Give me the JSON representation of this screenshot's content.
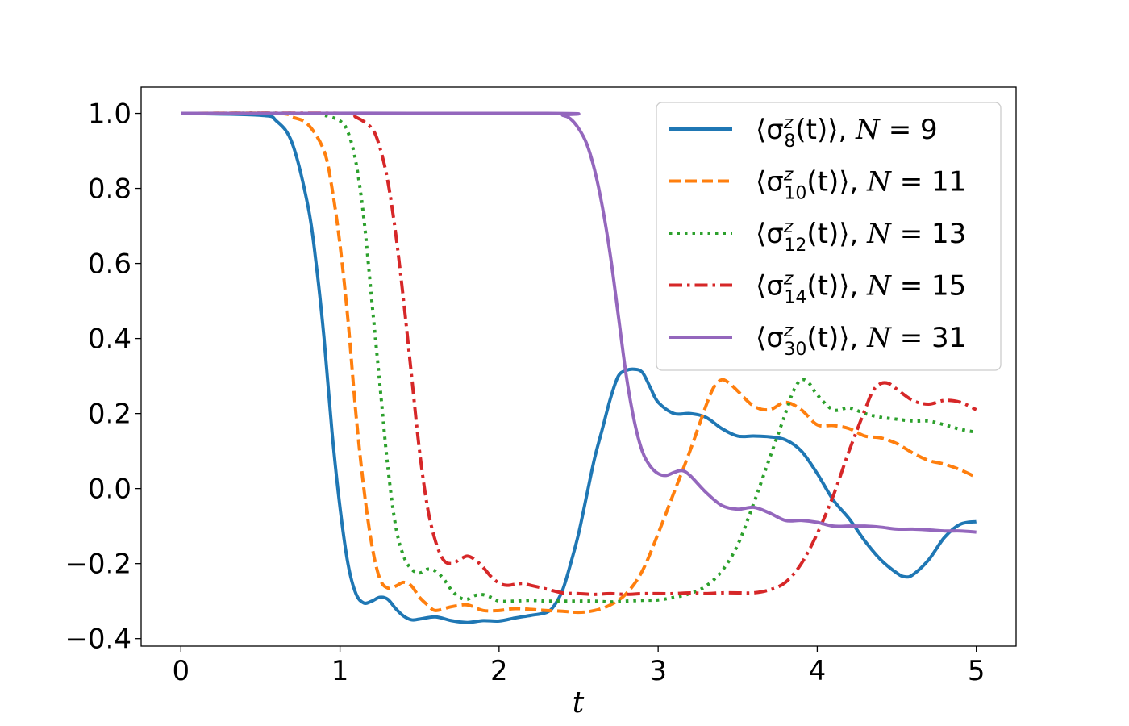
{
  "chart_data": {
    "type": "line",
    "xlabel": "t",
    "ylabel": "",
    "xlim": [
      -0.25,
      5.25
    ],
    "ylim": [
      -0.42,
      1.07
    ],
    "xticks": [
      0,
      1,
      2,
      3,
      4,
      5
    ],
    "xtick_labels": [
      "0",
      "1",
      "2",
      "3",
      "4",
      "5"
    ],
    "yticks": [
      -0.4,
      -0.2,
      0.0,
      0.2,
      0.4,
      0.6,
      0.8,
      1.0
    ],
    "ytick_labels": [
      "−0.4",
      "−0.2",
      "0.0",
      "0.2",
      "0.4",
      "0.6",
      "0.8",
      "1.0"
    ],
    "grid": false,
    "legend_position": "top-right",
    "series": [
      {
        "name": "⟨σ_8^z(t)⟩, N = 9",
        "label": {
          "open": "⟨σ",
          "sup": "z",
          "sub": "8",
          "close": "(t)⟩, ",
          "n": "N",
          "eq": " = 9"
        },
        "color": "#1f77b4",
        "dash": "solid",
        "points": [
          [
            0,
            1.0
          ],
          [
            0.5,
            0.995
          ],
          [
            0.6,
            0.98
          ],
          [
            0.7,
            0.92
          ],
          [
            0.8,
            0.75
          ],
          [
            0.85,
            0.6
          ],
          [
            0.9,
            0.4
          ],
          [
            0.95,
            0.15
          ],
          [
            1.0,
            -0.05
          ],
          [
            1.05,
            -0.2
          ],
          [
            1.1,
            -0.28
          ],
          [
            1.15,
            -0.305
          ],
          [
            1.2,
            -0.3
          ],
          [
            1.25,
            -0.29
          ],
          [
            1.3,
            -0.295
          ],
          [
            1.35,
            -0.32
          ],
          [
            1.4,
            -0.34
          ],
          [
            1.45,
            -0.35
          ],
          [
            1.5,
            -0.348
          ],
          [
            1.6,
            -0.342
          ],
          [
            1.7,
            -0.352
          ],
          [
            1.8,
            -0.357
          ],
          [
            1.9,
            -0.352
          ],
          [
            2.0,
            -0.353
          ],
          [
            2.1,
            -0.345
          ],
          [
            2.2,
            -0.338
          ],
          [
            2.3,
            -0.33
          ],
          [
            2.35,
            -0.31
          ],
          [
            2.4,
            -0.27
          ],
          [
            2.45,
            -0.2
          ],
          [
            2.5,
            -0.12
          ],
          [
            2.55,
            -0.02
          ],
          [
            2.6,
            0.08
          ],
          [
            2.65,
            0.16
          ],
          [
            2.7,
            0.24
          ],
          [
            2.75,
            0.3
          ],
          [
            2.8,
            0.315
          ],
          [
            2.85,
            0.318
          ],
          [
            2.9,
            0.31
          ],
          [
            2.95,
            0.27
          ],
          [
            3.0,
            0.23
          ],
          [
            3.1,
            0.2
          ],
          [
            3.2,
            0.2
          ],
          [
            3.3,
            0.19
          ],
          [
            3.4,
            0.16
          ],
          [
            3.5,
            0.14
          ],
          [
            3.6,
            0.14
          ],
          [
            3.7,
            0.138
          ],
          [
            3.8,
            0.13
          ],
          [
            3.9,
            0.1
          ],
          [
            4.0,
            0.04
          ],
          [
            4.1,
            -0.03
          ],
          [
            4.2,
            -0.08
          ],
          [
            4.3,
            -0.14
          ],
          [
            4.4,
            -0.19
          ],
          [
            4.5,
            -0.225
          ],
          [
            4.55,
            -0.235
          ],
          [
            4.6,
            -0.23
          ],
          [
            4.7,
            -0.19
          ],
          [
            4.8,
            -0.13
          ],
          [
            4.9,
            -0.095
          ],
          [
            5.0,
            -0.088
          ]
        ]
      },
      {
        "name": "⟨σ_10^z(t)⟩, N = 11",
        "label": {
          "open": "⟨σ",
          "sup": "z",
          "sub": "10",
          "close": "(t)⟩, ",
          "n": "N",
          "eq": " = 11"
        },
        "color": "#ff7f0e",
        "dash": "dashed",
        "points": [
          [
            0,
            1.0
          ],
          [
            0.6,
            1.0
          ],
          [
            0.7,
            0.99
          ],
          [
            0.8,
            0.97
          ],
          [
            0.9,
            0.9
          ],
          [
            0.95,
            0.8
          ],
          [
            1.0,
            0.65
          ],
          [
            1.05,
            0.45
          ],
          [
            1.1,
            0.2
          ],
          [
            1.15,
            0.0
          ],
          [
            1.2,
            -0.15
          ],
          [
            1.25,
            -0.24
          ],
          [
            1.3,
            -0.265
          ],
          [
            1.35,
            -0.26
          ],
          [
            1.4,
            -0.25
          ],
          [
            1.45,
            -0.26
          ],
          [
            1.5,
            -0.29
          ],
          [
            1.55,
            -0.31
          ],
          [
            1.6,
            -0.325
          ],
          [
            1.7,
            -0.315
          ],
          [
            1.8,
            -0.31
          ],
          [
            1.9,
            -0.325
          ],
          [
            2.0,
            -0.325
          ],
          [
            2.1,
            -0.32
          ],
          [
            2.2,
            -0.322
          ],
          [
            2.3,
            -0.325
          ],
          [
            2.4,
            -0.327
          ],
          [
            2.5,
            -0.33
          ],
          [
            2.6,
            -0.325
          ],
          [
            2.7,
            -0.31
          ],
          [
            2.8,
            -0.28
          ],
          [
            2.9,
            -0.22
          ],
          [
            3.0,
            -0.12
          ],
          [
            3.1,
            -0.01
          ],
          [
            3.2,
            0.1
          ],
          [
            3.3,
            0.22
          ],
          [
            3.35,
            0.27
          ],
          [
            3.4,
            0.29
          ],
          [
            3.45,
            0.28
          ],
          [
            3.5,
            0.26
          ],
          [
            3.6,
            0.22
          ],
          [
            3.7,
            0.21
          ],
          [
            3.8,
            0.23
          ],
          [
            3.9,
            0.21
          ],
          [
            4.0,
            0.17
          ],
          [
            4.1,
            0.168
          ],
          [
            4.2,
            0.16
          ],
          [
            4.3,
            0.14
          ],
          [
            4.4,
            0.135
          ],
          [
            4.5,
            0.12
          ],
          [
            4.6,
            0.095
          ],
          [
            4.7,
            0.075
          ],
          [
            4.8,
            0.065
          ],
          [
            4.9,
            0.05
          ],
          [
            5.0,
            0.03
          ]
        ]
      },
      {
        "name": "⟨σ_12^z(t)⟩, N = 13",
        "label": {
          "open": "⟨σ",
          "sup": "z",
          "sub": "12",
          "close": "(t)⟩, ",
          "n": "N",
          "eq": " = 13"
        },
        "color": "#2ca02c",
        "dash": "dotted",
        "points": [
          [
            0,
            1.0
          ],
          [
            0.8,
            1.0
          ],
          [
            0.9,
            0.995
          ],
          [
            1.0,
            0.98
          ],
          [
            1.05,
            0.95
          ],
          [
            1.1,
            0.87
          ],
          [
            1.15,
            0.72
          ],
          [
            1.2,
            0.5
          ],
          [
            1.25,
            0.28
          ],
          [
            1.3,
            0.06
          ],
          [
            1.35,
            -0.1
          ],
          [
            1.4,
            -0.18
          ],
          [
            1.45,
            -0.215
          ],
          [
            1.5,
            -0.225
          ],
          [
            1.55,
            -0.215
          ],
          [
            1.6,
            -0.22
          ],
          [
            1.65,
            -0.24
          ],
          [
            1.7,
            -0.27
          ],
          [
            1.75,
            -0.29
          ],
          [
            1.8,
            -0.295
          ],
          [
            1.85,
            -0.285
          ],
          [
            1.9,
            -0.283
          ],
          [
            1.95,
            -0.29
          ],
          [
            2.0,
            -0.3
          ],
          [
            2.1,
            -0.3
          ],
          [
            2.2,
            -0.298
          ],
          [
            2.3,
            -0.3
          ],
          [
            2.4,
            -0.3
          ],
          [
            2.5,
            -0.3
          ],
          [
            2.6,
            -0.3
          ],
          [
            2.7,
            -0.302
          ],
          [
            2.8,
            -0.3
          ],
          [
            2.9,
            -0.298
          ],
          [
            3.0,
            -0.297
          ],
          [
            3.1,
            -0.29
          ],
          [
            3.2,
            -0.28
          ],
          [
            3.3,
            -0.26
          ],
          [
            3.4,
            -0.22
          ],
          [
            3.5,
            -0.15
          ],
          [
            3.6,
            -0.04
          ],
          [
            3.7,
            0.08
          ],
          [
            3.8,
            0.2
          ],
          [
            3.85,
            0.26
          ],
          [
            3.9,
            0.29
          ],
          [
            3.95,
            0.28
          ],
          [
            4.0,
            0.25
          ],
          [
            4.1,
            0.21
          ],
          [
            4.2,
            0.215
          ],
          [
            4.3,
            0.2
          ],
          [
            4.4,
            0.19
          ],
          [
            4.5,
            0.185
          ],
          [
            4.6,
            0.18
          ],
          [
            4.7,
            0.18
          ],
          [
            4.8,
            0.17
          ],
          [
            4.9,
            0.158
          ],
          [
            5.0,
            0.15
          ]
        ]
      },
      {
        "name": "⟨σ_14^z(t)⟩, N = 15",
        "label": {
          "open": "⟨σ",
          "sup": "z",
          "sub": "14",
          "close": "(t)⟩, ",
          "n": "N",
          "eq": " = 15"
        },
        "color": "#d62728",
        "dash": "dashdot",
        "points": [
          [
            0,
            1.0
          ],
          [
            1.0,
            1.0
          ],
          [
            1.1,
            0.99
          ],
          [
            1.2,
            0.96
          ],
          [
            1.25,
            0.91
          ],
          [
            1.3,
            0.82
          ],
          [
            1.35,
            0.68
          ],
          [
            1.4,
            0.5
          ],
          [
            1.45,
            0.3
          ],
          [
            1.5,
            0.1
          ],
          [
            1.55,
            -0.05
          ],
          [
            1.6,
            -0.14
          ],
          [
            1.65,
            -0.19
          ],
          [
            1.7,
            -0.2
          ],
          [
            1.75,
            -0.19
          ],
          [
            1.8,
            -0.18
          ],
          [
            1.85,
            -0.19
          ],
          [
            1.9,
            -0.21
          ],
          [
            1.95,
            -0.235
          ],
          [
            2.0,
            -0.252
          ],
          [
            2.05,
            -0.258
          ],
          [
            2.1,
            -0.255
          ],
          [
            2.15,
            -0.253
          ],
          [
            2.2,
            -0.258
          ],
          [
            2.3,
            -0.268
          ],
          [
            2.4,
            -0.278
          ],
          [
            2.5,
            -0.28
          ],
          [
            2.6,
            -0.282
          ],
          [
            2.7,
            -0.28
          ],
          [
            2.8,
            -0.282
          ],
          [
            2.9,
            -0.28
          ],
          [
            3.0,
            -0.28
          ],
          [
            3.1,
            -0.28
          ],
          [
            3.2,
            -0.278
          ],
          [
            3.3,
            -0.28
          ],
          [
            3.4,
            -0.278
          ],
          [
            3.5,
            -0.278
          ],
          [
            3.6,
            -0.278
          ],
          [
            3.7,
            -0.27
          ],
          [
            3.8,
            -0.25
          ],
          [
            3.9,
            -0.2
          ],
          [
            4.0,
            -0.12
          ],
          [
            4.1,
            -0.02
          ],
          [
            4.2,
            0.1
          ],
          [
            4.3,
            0.21
          ],
          [
            4.35,
            0.26
          ],
          [
            4.4,
            0.28
          ],
          [
            4.45,
            0.28
          ],
          [
            4.5,
            0.265
          ],
          [
            4.6,
            0.235
          ],
          [
            4.7,
            0.225
          ],
          [
            4.8,
            0.235
          ],
          [
            4.9,
            0.23
          ],
          [
            5.0,
            0.21
          ]
        ]
      },
      {
        "name": "⟨σ_30^z(t)⟩, N = 31",
        "label": {
          "open": "⟨σ",
          "sup": "z",
          "sub": "30",
          "close": "(t)⟩, ",
          "n": "N",
          "eq": " = 31"
        },
        "color": "#9467bd",
        "dash": "solid",
        "points": [
          [
            0,
            1.0
          ],
          [
            2.3,
            1.0
          ],
          [
            2.4,
            0.995
          ],
          [
            2.45,
            0.985
          ],
          [
            2.5,
            0.96
          ],
          [
            2.55,
            0.92
          ],
          [
            2.6,
            0.85
          ],
          [
            2.65,
            0.75
          ],
          [
            2.7,
            0.62
          ],
          [
            2.75,
            0.46
          ],
          [
            2.8,
            0.3
          ],
          [
            2.85,
            0.18
          ],
          [
            2.9,
            0.1
          ],
          [
            2.95,
            0.06
          ],
          [
            3.0,
            0.04
          ],
          [
            3.05,
            0.035
          ],
          [
            3.1,
            0.043
          ],
          [
            3.15,
            0.048
          ],
          [
            3.2,
            0.035
          ],
          [
            3.3,
            -0.01
          ],
          [
            3.4,
            -0.045
          ],
          [
            3.5,
            -0.055
          ],
          [
            3.6,
            -0.05
          ],
          [
            3.7,
            -0.065
          ],
          [
            3.8,
            -0.085
          ],
          [
            3.9,
            -0.085
          ],
          [
            4.0,
            -0.09
          ],
          [
            4.1,
            -0.1
          ],
          [
            4.2,
            -0.1
          ],
          [
            4.3,
            -0.1
          ],
          [
            4.4,
            -0.103
          ],
          [
            4.5,
            -0.108
          ],
          [
            4.6,
            -0.108
          ],
          [
            4.7,
            -0.11
          ],
          [
            4.8,
            -0.113
          ],
          [
            4.9,
            -0.113
          ],
          [
            5.0,
            -0.116
          ]
        ]
      }
    ]
  }
}
